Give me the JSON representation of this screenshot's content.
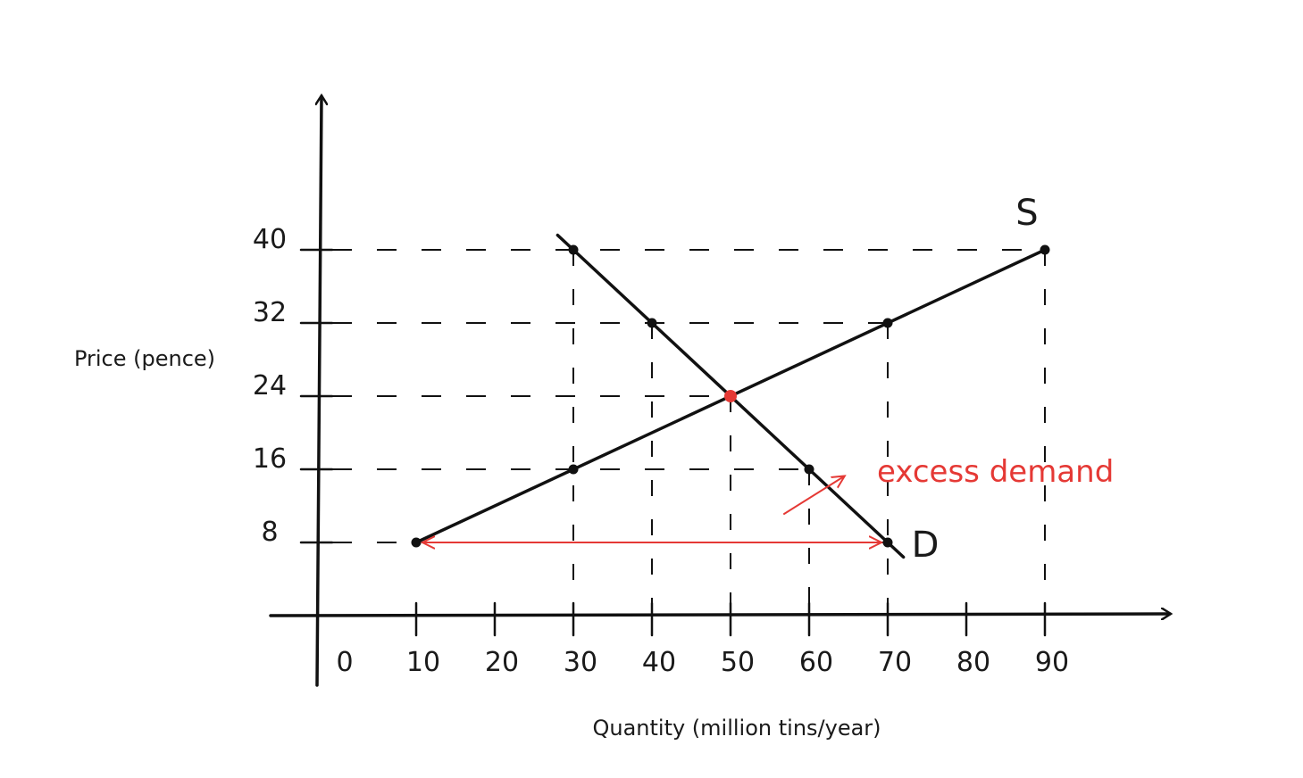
{
  "chart_data": {
    "type": "line",
    "xlabel": "Quantity (million tins/year)",
    "ylabel": "Price (pence)",
    "x_ticks": [
      "0",
      "10",
      "20",
      "30",
      "40",
      "50",
      "60",
      "70",
      "80",
      "90"
    ],
    "y_ticks": [
      "8",
      "16",
      "24",
      "32",
      "40"
    ],
    "xlim": [
      0,
      100
    ],
    "ylim": [
      0,
      50
    ],
    "grid": false,
    "series": [
      {
        "name": "S",
        "color": "#111111",
        "points": [
          [
            10,
            8
          ],
          [
            30,
            16
          ],
          [
            70,
            32
          ],
          [
            90,
            40
          ]
        ]
      },
      {
        "name": "D",
        "color": "#111111",
        "points": [
          [
            30,
            40
          ],
          [
            40,
            32
          ],
          [
            60,
            16
          ],
          [
            70,
            8
          ]
        ]
      }
    ],
    "equilibrium": {
      "x": 50,
      "y": 24,
      "color": "#e53935"
    },
    "excess_demand": {
      "price": 8,
      "from_q": 10,
      "to_q": 70,
      "label": "excess demand",
      "color": "#e53935"
    },
    "guide_lines": [
      {
        "y": 40,
        "x_to": 90
      },
      {
        "y": 32,
        "x_to": 70
      },
      {
        "y": 24,
        "x_to": 50
      },
      {
        "y": 16,
        "x_to": 60
      },
      {
        "y": 8,
        "x_to": 70
      }
    ],
    "vertical_guides": [
      30,
      40,
      50,
      60,
      70,
      90
    ]
  }
}
